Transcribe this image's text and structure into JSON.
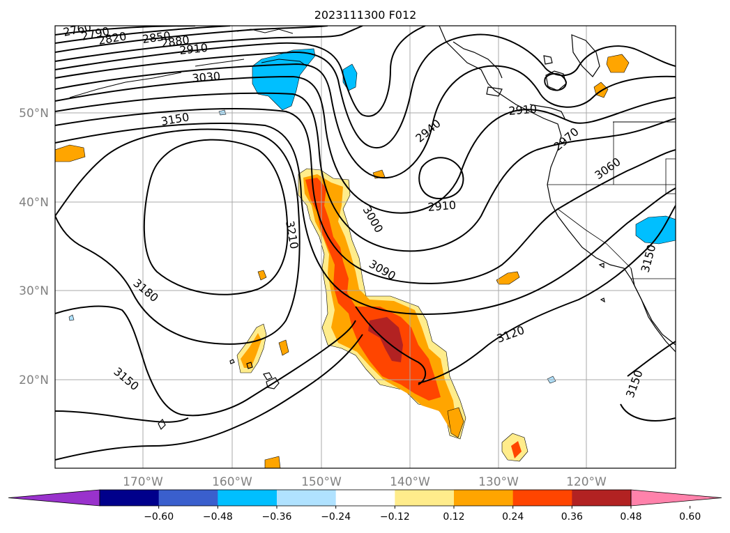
{
  "title": "2023111300 F012",
  "map": {
    "lat_labels": [
      "50°N",
      "40°N",
      "30°N",
      "20°N"
    ],
    "lon_labels": [
      "170°W",
      "160°W",
      "150°W",
      "140°W",
      "130°W",
      "120°W"
    ]
  },
  "contour_labels": [
    "2760",
    "2790",
    "2820",
    "2850",
    "2880",
    "2910",
    "3030",
    "3150",
    "2940",
    "2910",
    "2910",
    "2970",
    "3060",
    "3000",
    "3210",
    "3090",
    "3180",
    "3120",
    "3150",
    "3150",
    "3150"
  ],
  "colorbar": {
    "ticks": [
      "−0.60",
      "−0.48",
      "−0.36",
      "−0.24",
      "−0.12",
      "0.12",
      "0.24",
      "0.36",
      "0.48",
      "0.60"
    ],
    "colors": [
      "#9932cc",
      "#00008b",
      "#3a5fcd",
      "#00bfff",
      "#b0e2ff",
      "#ffffff",
      "#ffec8b",
      "#ffa500",
      "#ff4500",
      "#b22222",
      "#ff82ab"
    ]
  }
}
